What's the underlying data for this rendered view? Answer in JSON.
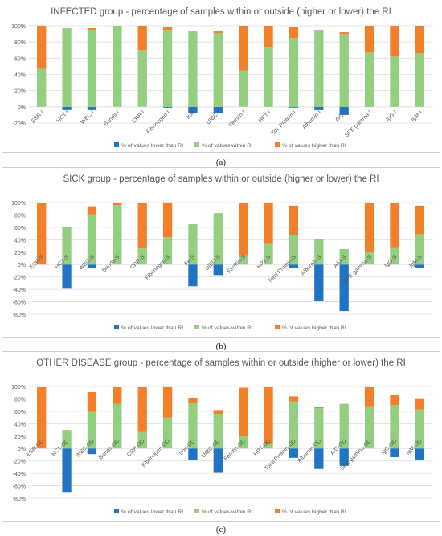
{
  "colors": {
    "lower": "#1f74c4",
    "within": "#93cf7e",
    "higher": "#f47f2a",
    "grid": "#dddddd",
    "text": "#595959"
  },
  "chart_data": [
    {
      "type": "bar",
      "stacked": true,
      "title": "INFECTED group - percentage of samples within or outside (higher or lower) the RI",
      "panel_label": "(a)",
      "categories": [
        "ESR-I",
        "HCT-I",
        "WBC-I",
        "Bands-I",
        "CRP-I",
        "Fibrinogen-I",
        "Iron",
        "UIBC-I",
        "Ferritin-I",
        "HPT-I",
        "Tot. Protein-I",
        "Albumin-I",
        "A/G-I",
        "SPE gamma-I",
        "IgG-I",
        "IgM-I"
      ],
      "yticks": [
        "100%",
        "80%",
        "60%",
        "40%",
        "20%",
        "0%",
        "-20%"
      ],
      "ylim": [
        -20,
        100
      ],
      "grid": true,
      "legend_position": "bottom",
      "series": [
        {
          "name": "% of values lower than RI",
          "values": [
            0,
            -4,
            -4,
            0,
            0,
            -1,
            -8,
            -8,
            0,
            0,
            -1,
            -4,
            -10,
            0,
            0,
            0
          ]
        },
        {
          "name": "% of values within RI",
          "values": [
            47,
            97,
            95,
            100,
            70,
            95,
            93,
            91,
            45,
            73,
            85,
            95,
            90,
            67,
            62,
            66
          ]
        },
        {
          "name": "% of values higher than RI",
          "values": [
            53,
            0,
            2,
            0,
            30,
            3,
            0,
            2,
            55,
            27,
            14,
            0,
            2,
            33,
            38,
            34
          ]
        }
      ]
    },
    {
      "type": "bar",
      "stacked": true,
      "title": "SICK group - percentage of samples within or outside (higher or lower) the RI",
      "panel_label": "(b)",
      "categories": [
        "ESR-S",
        "HCT-S",
        "WBC-S",
        "Bands-S",
        "CRP-S",
        "Fibrinogen-S",
        "Fe-S",
        "UIBC-S",
        "Ferritin-S",
        "HPT-S",
        "Total Protein-S",
        "Albumin-S",
        "A/G-S",
        "SPE gamma-S",
        "IgG-S",
        "IgM-S"
      ],
      "yticks": [
        "100%",
        "80%",
        "60%",
        "40%",
        "20%",
        "0%",
        "-20%",
        "-40%",
        "-60%",
        "-80%"
      ],
      "ylim": [
        -80,
        100
      ],
      "grid": true,
      "legend_position": "bottom",
      "series": [
        {
          "name": "% of values lower than RI",
          "values": [
            0,
            -39,
            -6,
            0,
            0,
            0,
            -35,
            -17,
            0,
            0,
            -5,
            -59,
            -75,
            0,
            0,
            -5
          ]
        },
        {
          "name": "% of values within RI",
          "values": [
            0,
            61,
            81,
            96,
            26,
            44,
            65,
            83,
            15,
            33,
            47,
            41,
            25,
            20,
            28,
            49
          ]
        },
        {
          "name": "% of values higher than RI",
          "values": [
            100,
            0,
            13,
            4,
            74,
            56,
            0,
            0,
            85,
            67,
            48,
            0,
            0,
            80,
            72,
            46
          ]
        }
      ]
    },
    {
      "type": "bar",
      "stacked": true,
      "title": "OTHER DISEASE group - percentage of samples within or outside (higher or lower) the RI",
      "panel_label": "(c)",
      "categories": [
        "ESR-OD",
        "HCT-OD",
        "WBC-OD",
        "Bands-OD",
        "CRP-OD",
        "Fibrinogen-OD",
        "Iron-OD",
        "UIBC-OD",
        "Ferritin-OD",
        "HPT-OD",
        "Total Protein-OD",
        "Albumin-OD",
        "A/G-OD",
        "SPE gamma-OD",
        "IgG-OD",
        "IgM-OD"
      ],
      "yticks": [
        "100%",
        "80%",
        "60%",
        "40%",
        "20%",
        "0%",
        "-20%",
        "-40%",
        "-60%",
        "-80%"
      ],
      "ylim": [
        -80,
        100
      ],
      "grid": true,
      "legend_position": "bottom",
      "series": [
        {
          "name": "% of values lower than RI",
          "values": [
            0,
            -70,
            -9,
            0,
            0,
            0,
            -18,
            -38,
            0,
            0,
            -15,
            -33,
            -28,
            0,
            -14,
            -19
          ]
        },
        {
          "name": "% of values within RI",
          "values": [
            0,
            30,
            59,
            72,
            28,
            50,
            73,
            56,
            20,
            8,
            76,
            65,
            72,
            68,
            70,
            63
          ]
        },
        {
          "name": "% of values higher than RI",
          "values": [
            100,
            0,
            32,
            28,
            72,
            50,
            9,
            6,
            78,
            92,
            8,
            2,
            0,
            32,
            16,
            18
          ]
        }
      ]
    }
  ]
}
